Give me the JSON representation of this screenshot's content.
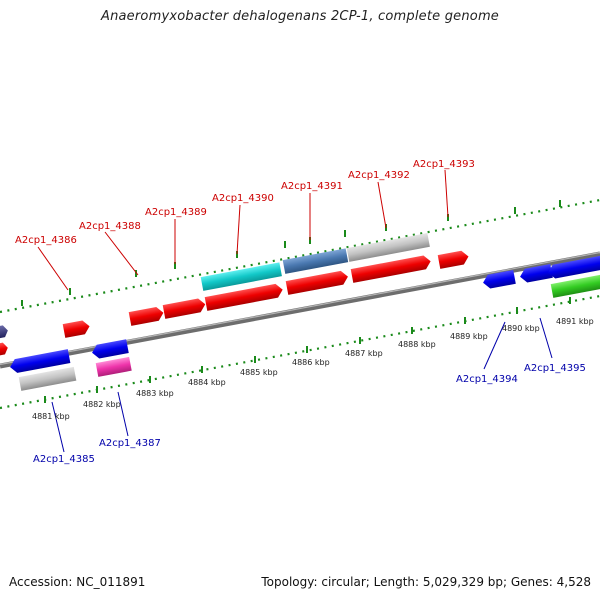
{
  "title": "Anaeromyxobacter dehalogenans 2CP-1, complete genome",
  "footer": {
    "accession": "Accession: NC_011891",
    "summary": "Topology: circular; Length: 5,029,329 bp; Genes: 4,528"
  },
  "colors": {
    "forward_label": "#cc0000",
    "reverse_label": "#0000aa",
    "tick": "#1a8a1a",
    "backbone": "#888888"
  },
  "kbp_labels": [
    "4881 kbp",
    "4882 kbp",
    "4883 kbp",
    "4884 kbp",
    "4885 kbp",
    "4886 kbp",
    "4887 kbp",
    "4888 kbp",
    "4889 kbp",
    "4890 kbp",
    "4891 kbp"
  ],
  "genes_forward": [
    {
      "name": "A2cp1_4386"
    },
    {
      "name": "A2cp1_4388"
    },
    {
      "name": "A2cp1_4389"
    },
    {
      "name": "A2cp1_4390"
    },
    {
      "name": "A2cp1_4391"
    },
    {
      "name": "A2cp1_4392"
    },
    {
      "name": "A2cp1_4393"
    }
  ],
  "genes_reverse": [
    {
      "name": "A2cp1_4385"
    },
    {
      "name": "A2cp1_4387"
    },
    {
      "name": "A2cp1_4394"
    },
    {
      "name": "A2cp1_4395"
    }
  ]
}
